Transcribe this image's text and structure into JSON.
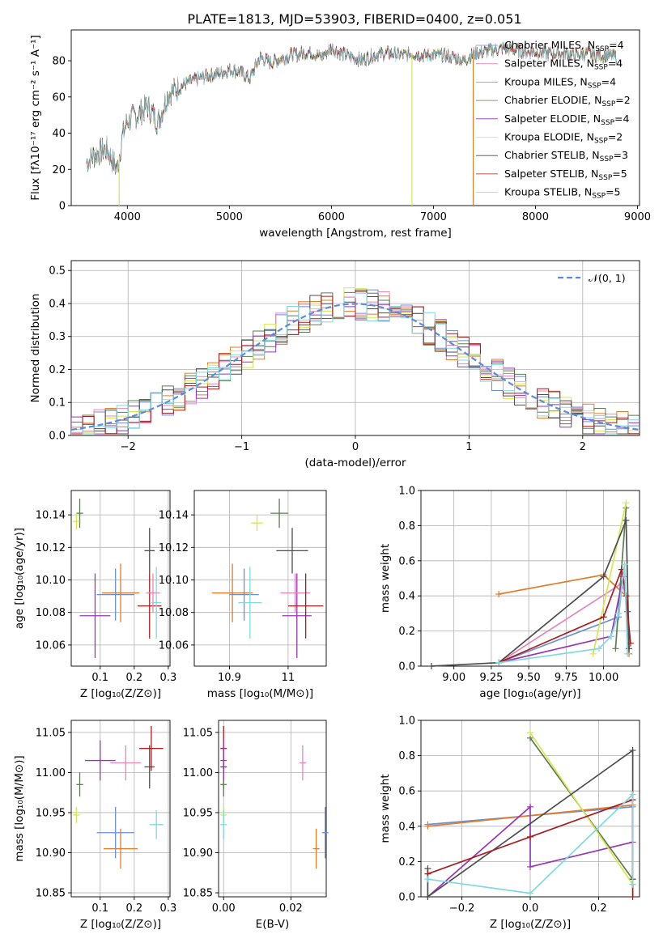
{
  "figure": {
    "title": "PLATE=1813, MJD=53903, FIBERID=0400, z=0.051"
  },
  "legend_entries": [
    {
      "name": "Chabrier MILES, N",
      "sub": "SSP",
      "tail": "=4",
      "color": "#6a8fd6"
    },
    {
      "name": "Salpeter MILES, N",
      "sub": "SSP",
      "tail": "=4",
      "color": "#e985b7"
    },
    {
      "name": "Kroupa MILES, N",
      "sub": "SSP",
      "tail": "=4",
      "color": "#e17c2a"
    },
    {
      "name": "Chabrier ELODIE, N",
      "sub": "SSP",
      "tail": "=2",
      "color": "#5a7d52"
    },
    {
      "name": "Salpeter ELODIE, N",
      "sub": "SSP",
      "tail": "=4",
      "color": "#9a34b5"
    },
    {
      "name": "Kroupa ELODIE, N",
      "sub": "SSP",
      "tail": "=2",
      "color": "#d6e84a"
    },
    {
      "name": "Chabrier STELIB, N",
      "sub": "SSP",
      "tail": "=3",
      "color": "#4d4d4d"
    },
    {
      "name": "Salpeter STELIB, N",
      "sub": "SSP",
      "tail": "=5",
      "color": "#a81d1d"
    },
    {
      "name": "Kroupa STELIB, N",
      "sub": "SSP",
      "tail": "=5",
      "color": "#7fd9e0"
    }
  ],
  "chart_data": [
    {
      "panel": "spectrum",
      "type": "line",
      "xlabel": "wavelength [Angstrom, rest frame]",
      "ylabel": "Flux [fλ10⁻¹⁷ erg cm⁻² s⁻¹ A⁻¹]",
      "xlim": [
        3450,
        9020
      ],
      "ylim": [
        0,
        97
      ],
      "xticks": [
        4000,
        5000,
        6000,
        7000,
        8000,
        9000
      ],
      "yticks": [
        0,
        20,
        40,
        60,
        80
      ],
      "x": [
        3600,
        3700,
        3800,
        3900,
        3950,
        4000,
        4100,
        4200,
        4300,
        4400,
        4500,
        4600,
        4700,
        4800,
        4900,
        5000,
        5100,
        5200,
        5300,
        5400,
        5500,
        5600,
        5700,
        5800,
        5900,
        6000,
        6100,
        6200,
        6300,
        6400,
        6500,
        6600,
        6700,
        6800,
        6900,
        7000,
        7100,
        7200,
        7300,
        7400,
        7500,
        7600,
        7700,
        7800,
        7900,
        8000,
        8100,
        8200,
        8300,
        8400,
        8500,
        8600,
        8700,
        8800
      ],
      "y": [
        24,
        29,
        31,
        20,
        38,
        47,
        50,
        55,
        46,
        62,
        65,
        68,
        70,
        72,
        73,
        75,
        74,
        70,
        82,
        79,
        81,
        83,
        84,
        85,
        82,
        87,
        84,
        82,
        80,
        83,
        84,
        84,
        83,
        84,
        83,
        83,
        83,
        82,
        80,
        84,
        85,
        86,
        87,
        86,
        85,
        85,
        84,
        84,
        84,
        83,
        84,
        83,
        83,
        82
      ],
      "dropouts": [
        {
          "x": 3920,
          "color": "#d6e84a"
        },
        {
          "x": 6790,
          "color": "#d6e84a"
        },
        {
          "x": 7390,
          "color": "#e17c2a"
        }
      ]
    },
    {
      "panel": "residual_histogram",
      "type": "line",
      "xlabel": "(data-model)/error",
      "ylabel": "Normed distribution",
      "xlim": [
        -2.5,
        2.5
      ],
      "ylim": [
        0,
        0.53
      ],
      "xticks": [
        -2,
        -1,
        0,
        1,
        2
      ],
      "xticklabels": [
        "−2",
        "−1",
        "0",
        "1",
        "2"
      ],
      "yticks": [
        0.0,
        0.1,
        0.2,
        0.3,
        0.4,
        0.5
      ],
      "legend_label": "𝒩(0, 1)",
      "gaussian": {
        "mean": 0,
        "sigma": 1
      },
      "bin_edges_start": -2.5,
      "bin_width": 0.1,
      "nbins": 50
    },
    {
      "panel": "age_vs_Z",
      "type": "scatter",
      "xlabel": "Z [log₁₀(Z/Z⊙)]",
      "ylabel": "age  [log₁₀(age/yr)]",
      "xlim": [
        0.015,
        0.305
      ],
      "ylim": [
        10.047,
        10.155
      ],
      "xticks": [
        0.1,
        0.2,
        0.3
      ],
      "yticks": [
        10.06,
        10.08,
        10.1,
        10.12,
        10.14
      ],
      "points": [
        {
          "x": 0.04,
          "y": 10.141,
          "xerr": 0.01,
          "yerr": 0.009,
          "color": "#5a7d52"
        },
        {
          "x": 0.03,
          "y": 10.136,
          "xerr": 0.006,
          "yerr": 0.005,
          "color": "#d6e84a"
        },
        {
          "x": 0.245,
          "y": 10.118,
          "xerr": 0.015,
          "yerr": 0.014,
          "color": "#4d4d4d"
        },
        {
          "x": 0.16,
          "y": 10.092,
          "xerr": 0.055,
          "yerr": 0.018,
          "color": "#e17c2a"
        },
        {
          "x": 0.145,
          "y": 10.091,
          "xerr": 0.055,
          "yerr": 0.016,
          "color": "#6a8fd6"
        },
        {
          "x": 0.245,
          "y": 10.084,
          "xerr": 0.035,
          "yerr": 0.02,
          "color": "#a81d1d"
        },
        {
          "x": 0.085,
          "y": 10.078,
          "xerr": 0.045,
          "yerr": 0.026,
          "color": "#9a34b5"
        },
        {
          "x": 0.255,
          "y": 10.092,
          "xerr": 0.02,
          "yerr": 0.012,
          "color": "#e985b7"
        },
        {
          "x": 0.265,
          "y": 10.086,
          "xerr": 0.015,
          "yerr": 0.022,
          "color": "#7fd9e0"
        }
      ]
    },
    {
      "panel": "age_vs_mass",
      "type": "scatter",
      "xlabel": "mass [log₁₀(M/M⊙)]",
      "xlim": [
        10.84,
        11.065
      ],
      "ylim": [
        10.047,
        10.155
      ],
      "xticks": [
        10.9,
        11.0
      ],
      "yticks": [
        10.06,
        10.08,
        10.1,
        10.12,
        10.14
      ],
      "points": [
        {
          "x": 10.947,
          "y": 10.135,
          "xerr": 0.01,
          "yerr": 0.005,
          "color": "#d6e84a"
        },
        {
          "x": 10.985,
          "y": 10.141,
          "xerr": 0.015,
          "yerr": 0.009,
          "color": "#5a7d52"
        },
        {
          "x": 11.007,
          "y": 10.118,
          "xerr": 0.027,
          "yerr": 0.014,
          "color": "#4d4d4d"
        },
        {
          "x": 10.905,
          "y": 10.092,
          "xerr": 0.035,
          "yerr": 0.018,
          "color": "#e17c2a"
        },
        {
          "x": 10.925,
          "y": 10.091,
          "xerr": 0.025,
          "yerr": 0.016,
          "color": "#6a8fd6"
        },
        {
          "x": 10.935,
          "y": 10.086,
          "xerr": 0.02,
          "yerr": 0.022,
          "color": "#7fd9e0"
        },
        {
          "x": 11.015,
          "y": 10.078,
          "xerr": 0.025,
          "yerr": 0.026,
          "color": "#9a34b5"
        },
        {
          "x": 11.012,
          "y": 10.092,
          "xerr": 0.025,
          "yerr": 0.012,
          "color": "#e985b7"
        },
        {
          "x": 11.03,
          "y": 10.084,
          "xerr": 0.03,
          "yerr": 0.02,
          "color": "#a81d1d"
        }
      ]
    },
    {
      "panel": "mass_vs_Z",
      "type": "scatter",
      "xlabel": "Z [log₁₀(Z/Z⊙)]",
      "ylabel": "mass [log₁₀(M/M⊙)]",
      "xlim": [
        0.015,
        0.305
      ],
      "ylim": [
        10.845,
        11.065
      ],
      "xticks": [
        0.1,
        0.2,
        0.3
      ],
      "yticks": [
        10.85,
        10.9,
        10.95,
        11.0,
        11.05
      ],
      "points": [
        {
          "x": 0.03,
          "y": 10.947,
          "xerr": 0.006,
          "yerr": 0.01,
          "color": "#d6e84a"
        },
        {
          "x": 0.04,
          "y": 10.985,
          "xerr": 0.01,
          "yerr": 0.015,
          "color": "#5a7d52"
        },
        {
          "x": 0.245,
          "y": 11.007,
          "xerr": 0.015,
          "yerr": 0.027,
          "color": "#4d4d4d"
        },
        {
          "x": 0.16,
          "y": 10.905,
          "xerr": 0.05,
          "yerr": 0.025,
          "color": "#e17c2a"
        },
        {
          "x": 0.145,
          "y": 10.925,
          "xerr": 0.055,
          "yerr": 0.032,
          "color": "#6a8fd6"
        },
        {
          "x": 0.265,
          "y": 10.935,
          "xerr": 0.02,
          "yerr": 0.018,
          "color": "#7fd9e0"
        },
        {
          "x": 0.1,
          "y": 11.015,
          "xerr": 0.045,
          "yerr": 0.025,
          "color": "#9a34b5"
        },
        {
          "x": 0.175,
          "y": 11.012,
          "xerr": 0.045,
          "yerr": 0.022,
          "color": "#e985b7"
        },
        {
          "x": 0.25,
          "y": 11.03,
          "xerr": 0.035,
          "yerr": 0.028,
          "color": "#a81d1d"
        }
      ]
    },
    {
      "panel": "mass_vs_EBV",
      "type": "scatter",
      "xlabel": "E(B-V)",
      "xlim": [
        -0.0015,
        0.0305
      ],
      "ylim": [
        10.845,
        11.065
      ],
      "xticks": [
        0.0,
        0.02
      ],
      "xticklabels": [
        "0.00",
        "0.02"
      ],
      "yticks": [
        10.85,
        10.9,
        10.95,
        11.0,
        11.05
      ],
      "points": [
        {
          "x": 0.0,
          "y": 11.03,
          "xerr": 0,
          "yerr": 0.028,
          "color": "#a81d1d"
        },
        {
          "x": 0.0,
          "y": 11.007,
          "xerr": 0,
          "yerr": 0.027,
          "color": "#4d4d4d"
        },
        {
          "x": 0.0,
          "y": 10.985,
          "xerr": 0,
          "yerr": 0.015,
          "color": "#5a7d52"
        },
        {
          "x": 0.0,
          "y": 10.947,
          "xerr": 0,
          "yerr": 0.01,
          "color": "#d6e84a"
        },
        {
          "x": 0.0,
          "y": 10.935,
          "xerr": 0,
          "yerr": 0.018,
          "color": "#7fd9e0"
        },
        {
          "x": 0.0,
          "y": 11.015,
          "xerr": 0,
          "yerr": 0.025,
          "color": "#9a34b5"
        },
        {
          "x": 0.0235,
          "y": 11.012,
          "xerr": 0,
          "yerr": 0.022,
          "color": "#e985b7"
        },
        {
          "x": 0.0275,
          "y": 10.905,
          "xerr": 0,
          "yerr": 0.025,
          "color": "#e17c2a"
        },
        {
          "x": 0.0302,
          "y": 10.925,
          "xerr": 0,
          "yerr": 0.032,
          "color": "#6a8fd6"
        }
      ]
    },
    {
      "panel": "weight_vs_age",
      "type": "line",
      "xlabel": "age  [log₁₀(age/yr)]",
      "ylabel": "mass weight",
      "xlim": [
        8.78,
        10.24
      ],
      "ylim": [
        0,
        1.0
      ],
      "xticks": [
        9.0,
        9.25,
        9.5,
        9.75,
        10.0
      ],
      "xticklabels": [
        "9.00",
        "9.25",
        "9.50",
        "9.75",
        "10.00"
      ],
      "yticks": [
        0.0,
        0.2,
        0.4,
        0.6,
        0.8,
        1.0
      ],
      "series": [
        {
          "color": "#6a8fd6",
          "x": [
            9.3,
            10.1,
            10.13,
            10.15
          ],
          "y": [
            0.02,
            0.28,
            0.51,
            0.4
          ]
        },
        {
          "color": "#e985b7",
          "x": [
            9.3,
            10.12,
            10.15,
            10.17
          ],
          "y": [
            0.02,
            0.47,
            0.4,
            0.07
          ]
        },
        {
          "color": "#e17c2a",
          "x": [
            9.3,
            10.0,
            10.15,
            10.17
          ],
          "y": [
            0.41,
            0.52,
            0.4,
            0.07
          ]
        },
        {
          "color": "#5a7d52",
          "x": [
            10.08,
            10.15
          ],
          "y": [
            0.1,
            0.9
          ]
        },
        {
          "color": "#9a34b5",
          "x": [
            9.3,
            10.05,
            10.13,
            10.16
          ],
          "y": [
            0.02,
            0.17,
            0.51,
            0.31
          ]
        },
        {
          "color": "#d6e84a",
          "x": [
            9.93,
            10.15
          ],
          "y": [
            0.07,
            0.93
          ]
        },
        {
          "color": "#4d4d4d",
          "x": [
            8.85,
            9.3,
            10.0,
            10.15,
            10.17
          ],
          "y": [
            0.0,
            0.02,
            0.51,
            0.83,
            0.1
          ]
        },
        {
          "color": "#a81d1d",
          "x": [
            9.3,
            10.0,
            10.12,
            10.15,
            10.18
          ],
          "y": [
            0.02,
            0.28,
            0.55,
            0.4,
            0.13
          ]
        },
        {
          "color": "#7fd9e0",
          "x": [
            9.3,
            9.97,
            10.05,
            10.1,
            10.14,
            10.16
          ],
          "y": [
            0.02,
            0.1,
            0.17,
            0.3,
            0.58,
            0.07
          ]
        }
      ]
    },
    {
      "panel": "weight_vs_Z",
      "type": "line",
      "xlabel": "Z [log₁₀(Z/Z⊙)]",
      "ylabel": "mass weight",
      "xlim": [
        -0.32,
        0.32
      ],
      "ylim": [
        0,
        1.0
      ],
      "xticks": [
        -0.2,
        0.0,
        0.2
      ],
      "xticklabels": [
        "−0.2",
        "0.0",
        "0.2"
      ],
      "yticks": [
        0.0,
        0.2,
        0.4,
        0.6,
        0.8,
        1.0
      ],
      "series": [
        {
          "color": "#6a8fd6",
          "x": [
            -0.3,
            0.3
          ],
          "y": [
            0.41,
            0.51
          ]
        },
        {
          "color": "#e985b7",
          "x": [
            0.3,
            0.3
          ],
          "y": [
            0.07,
            0.55
          ]
        },
        {
          "color": "#e17c2a",
          "x": [
            -0.3,
            0.3
          ],
          "y": [
            0.4,
            0.52
          ]
        },
        {
          "color": "#5a7d52",
          "x": [
            0.0,
            0.3
          ],
          "y": [
            0.9,
            0.1
          ]
        },
        {
          "color": "#9a34b5",
          "x": [
            -0.3,
            0.0,
            0.0,
            0.3
          ],
          "y": [
            0.0,
            0.51,
            0.17,
            0.31
          ]
        },
        {
          "color": "#d6e84a",
          "x": [
            0.0,
            0.3
          ],
          "y": [
            0.93,
            0.07
          ]
        },
        {
          "color": "#4d4d4d",
          "x": [
            -0.3,
            -0.3,
            0.3,
            0.3
          ],
          "y": [
            0.16,
            0.0,
            0.83,
            0.1
          ]
        },
        {
          "color": "#a81d1d",
          "x": [
            -0.3,
            0.0,
            0.3,
            0.3
          ],
          "y": [
            0.13,
            0.34,
            0.55,
            0.0
          ]
        },
        {
          "color": "#7fd9e0",
          "x": [
            -0.3,
            0.0,
            0.3,
            0.3
          ],
          "y": [
            0.1,
            0.02,
            0.58,
            0.07
          ]
        }
      ]
    }
  ]
}
